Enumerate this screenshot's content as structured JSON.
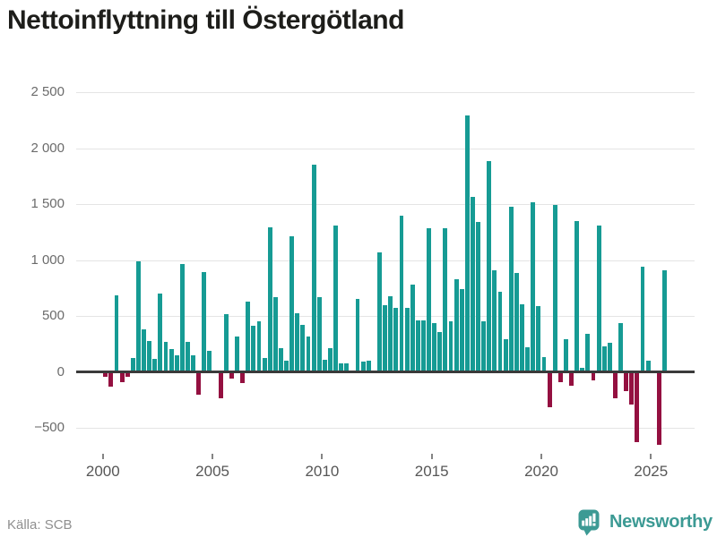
{
  "title": "Nettoinflyttning till Östergötland",
  "source": {
    "label": "Källa: SCB"
  },
  "branding": {
    "name": "Newsworthy",
    "icon": "newsworthy-badge-chart-icon"
  },
  "colors": {
    "positive_bar": "#169b94",
    "negative_bar": "#941040",
    "gridline": "#e4e4e4",
    "zero_line": "#3a3a3a",
    "brand_teal": "#3c9a94"
  },
  "chart_data": {
    "type": "bar",
    "title": "Nettoinflyttning till Östergötland",
    "frequency": "quarterly",
    "start": "2000-Q1",
    "end": "2025-Q3",
    "grid": true,
    "ylim": [
      -700,
      2560
    ],
    "y_ticks": [
      "2 500",
      "2 000",
      "1 500",
      "1 000",
      "500",
      "0",
      "−500"
    ],
    "y_tick_values": [
      2500,
      2000,
      1500,
      1000,
      500,
      0,
      -500
    ],
    "x_ticks": [
      "2000",
      "2005",
      "2010",
      "2015",
      "2020",
      "2025"
    ],
    "values": [
      -30,
      -117,
      683,
      -77,
      -29,
      127,
      987,
      381,
      280,
      114,
      701,
      272,
      201,
      145,
      961,
      272,
      145,
      -195,
      895,
      185,
      10,
      -220,
      520,
      -50,
      315,
      -85,
      632,
      410,
      450,
      125,
      1295,
      665,
      212,
      100,
      1210,
      523,
      420,
      320,
      1852,
      672,
      105,
      210,
      1305,
      80,
      80,
      5,
      650,
      95,
      100,
      5,
      1065,
      600,
      680,
      576,
      1397,
      576,
      781,
      461,
      461,
      1283,
      440,
      360,
      1284,
      452,
      830,
      737,
      2292,
      1564,
      1337,
      452,
      1884,
      905,
      719,
      290,
      1479,
      884,
      604,
      220,
      1516,
      591,
      130,
      -303,
      1489,
      -76,
      295,
      -115,
      1345,
      35,
      340,
      -65,
      1310,
      225,
      262,
      -220,
      437,
      -159,
      -283,
      -617,
      937,
      98,
      13,
      -643,
      908
    ]
  }
}
